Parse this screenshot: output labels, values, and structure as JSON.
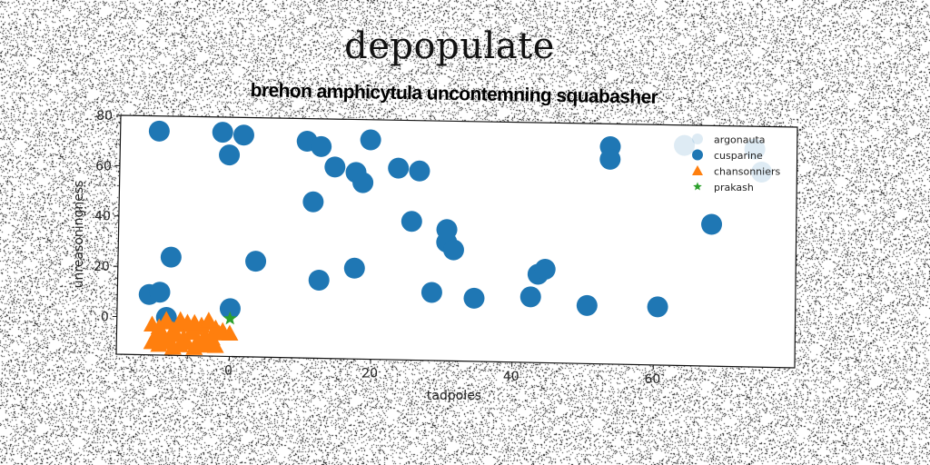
{
  "page": {
    "suptitle": "depopulate"
  },
  "chart_data": {
    "type": "scatter",
    "title": "brehon amphicytula uncontemning squabasher",
    "xlabel": "tadpoles",
    "ylabel": "unreasoningness",
    "xlim": [
      -16,
      80
    ],
    "ylim": [
      -15,
      80
    ],
    "xticks": [
      "0",
      "20",
      "40",
      "60"
    ],
    "yticks": [
      "0",
      "20",
      "40",
      "60",
      "80"
    ],
    "legend_position": "top-right",
    "series": [
      {
        "name": "argonauta",
        "color": "#1f77b4",
        "alpha": 0.15,
        "marker": "circle",
        "x": [
          64,
          74,
          75
        ],
        "y": [
          72,
          71,
          62
        ]
      },
      {
        "name": "cusparine",
        "color": "#1f77b4",
        "marker": "circle",
        "x": [
          -10.5,
          -1.5,
          1.5,
          -0.5,
          10.5,
          12.5,
          14.5,
          17.5,
          19.5,
          18.5,
          23.5,
          26.5,
          11.5,
          25.5,
          30.5,
          30.5,
          31.5,
          17.5,
          12.5,
          3.5,
          -8.5,
          -11.5,
          -10,
          0,
          -9,
          28.5,
          34.5,
          42.5,
          43.5,
          44.5,
          50.5,
          53.5,
          53.5,
          60.5,
          68
        ],
        "y": [
          74,
          74,
          73,
          65,
          71,
          69,
          61,
          59,
          72,
          55,
          61,
          60,
          47,
          40,
          37,
          32,
          29,
          21,
          16,
          23,
          24,
          9,
          10,
          4,
          0,
          12,
          10,
          11,
          20,
          22,
          8,
          71,
          66,
          8,
          41
        ]
      },
      {
        "name": "chansonniers",
        "color": "#ff7f0e",
        "marker": "triangle",
        "x": [
          -11,
          -10,
          -9,
          -8,
          -7,
          -6,
          -5,
          -4,
          -3,
          -2,
          -1,
          0,
          -10.5,
          -9.5,
          -8.5,
          -7.5,
          -6.5,
          -5.5,
          -4.5,
          -3.5,
          -2.5,
          -1.5,
          -11,
          -10,
          -9,
          -8,
          -7,
          -6,
          -5,
          -4,
          -3,
          -2,
          -9,
          -7,
          -5,
          -3
        ],
        "y": [
          -3,
          -4,
          -2,
          -5,
          -3,
          -2,
          -4,
          -3,
          -2,
          -4,
          -5,
          -6,
          -8,
          -7,
          -9,
          -7,
          -8,
          -6,
          -9,
          -7,
          -8,
          -6,
          -10,
          -11,
          -10,
          -12,
          -11,
          -10,
          -12,
          -11,
          -10,
          -11,
          -1,
          -1,
          -2,
          -1
        ]
      },
      {
        "name": "prakash",
        "color": "#2ca02c",
        "marker": "star",
        "x": [
          0
        ],
        "y": [
          0
        ]
      }
    ]
  }
}
